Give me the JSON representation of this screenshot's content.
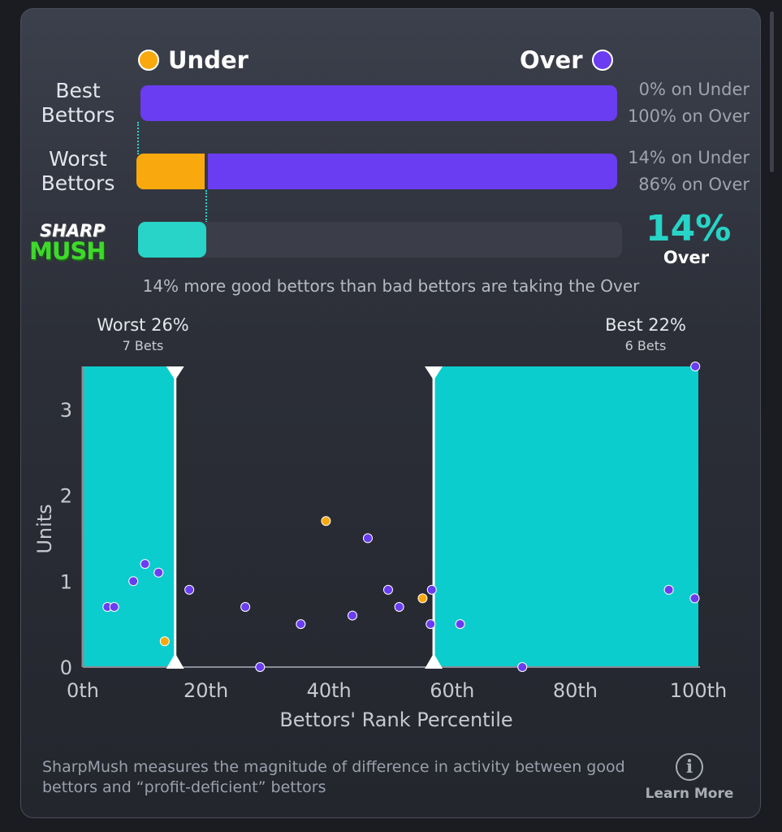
{
  "legend": {
    "under_label": "Under",
    "over_label": "Over",
    "under_color": "#f9a90e",
    "over_color": "#6a3df2"
  },
  "rows": [
    {
      "label_lines": [
        "Best",
        "Bettors"
      ],
      "under_pct": 0,
      "over_pct": 100,
      "under_text": "0% on Under",
      "over_text": "100% on Over"
    },
    {
      "label_lines": [
        "Worst",
        "Bettors"
      ],
      "under_pct": 14,
      "over_pct": 86,
      "under_text": "14% on Under",
      "over_text": "86% on Over"
    }
  ],
  "sharpmush": {
    "logo_top": "SHARP",
    "logo_bottom": "MUSH",
    "value_pct": 14,
    "value_text": "14%",
    "direction": "Over",
    "color": "#27d4c7"
  },
  "summary_text": "14% more good bettors than bad bettors are taking the Over",
  "bands": {
    "worst": {
      "title": "Worst 26%",
      "sub": "7 Bets",
      "x_range": [
        0,
        15
      ]
    },
    "best": {
      "title": "Best 22%",
      "sub": "6 Bets",
      "x_range": [
        57,
        100
      ]
    }
  },
  "chart_data": {
    "type": "scatter",
    "xlabel": "Bettors' Rank Percentile",
    "ylabel": "Units",
    "xlim": [
      0,
      100
    ],
    "ylim": [
      0,
      3.5
    ],
    "x_ticks": [
      0,
      20,
      40,
      60,
      80,
      100
    ],
    "x_tick_labels": [
      "0th",
      "20th",
      "40th",
      "60th",
      "80th",
      "100th"
    ],
    "y_ticks": [
      0,
      1,
      2,
      3
    ],
    "y_tick_labels": [
      "0",
      "1",
      "2",
      "3"
    ],
    "series": [
      {
        "name": "Under",
        "color": "#f9a90e",
        "points": [
          [
            13.3,
            0.3
          ],
          [
            39.5,
            1.7
          ],
          [
            55.2,
            0.8
          ]
        ]
      },
      {
        "name": "Over",
        "color": "#6a3df2",
        "points": [
          [
            4,
            0.7
          ],
          [
            5.1,
            0.7
          ],
          [
            8.2,
            1.0
          ],
          [
            10.1,
            1.2
          ],
          [
            12.3,
            1.1
          ],
          [
            17.3,
            0.9
          ],
          [
            26.4,
            0.7
          ],
          [
            28.8,
            0.0
          ],
          [
            35.4,
            0.5
          ],
          [
            43.8,
            0.6
          ],
          [
            46.3,
            1.5
          ],
          [
            49.6,
            0.9
          ],
          [
            51.4,
            0.7
          ],
          [
            56.5,
            0.5
          ],
          [
            56.7,
            0.9
          ],
          [
            61.3,
            0.5
          ],
          [
            71.4,
            0.0
          ],
          [
            95.2,
            0.9
          ],
          [
            99.4,
            0.8
          ],
          [
            99.5,
            3.5
          ]
        ]
      }
    ]
  },
  "footnote": "SharpMush measures the magnitude of difference in activity between good bettors and “profit-deficient” bettors",
  "learn_more": "Learn More"
}
